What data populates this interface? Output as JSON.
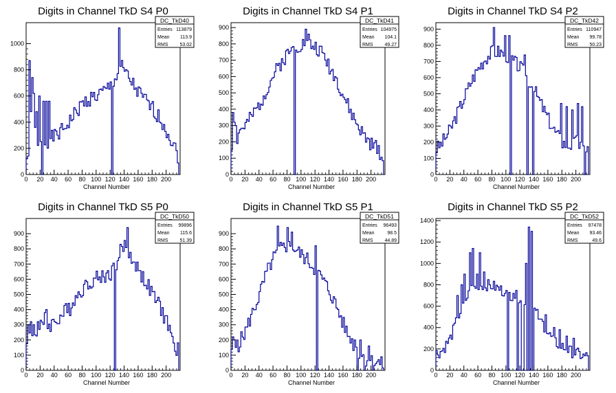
{
  "chart_data": [
    {
      "type": "histogram",
      "title": "Digits in Channel TkD S4 P0",
      "xlabel": "Channel Number",
      "xlim": [
        0,
        220
      ],
      "ylim": [
        0,
        1160
      ],
      "xticks": [
        0,
        20,
        40,
        60,
        80,
        100,
        120,
        140,
        160,
        180,
        200
      ],
      "yticks": [
        0,
        200,
        400,
        600,
        800,
        1000
      ],
      "stats": {
        "name": "DC_TkD40",
        "entries": "113879",
        "mean": "113.9",
        "rms": "53.02"
      },
      "anchors": [
        [
          0,
          120
        ],
        [
          2,
          160
        ],
        [
          4,
          140
        ],
        [
          6,
          160
        ],
        [
          8,
          190
        ],
        [
          10,
          200
        ],
        [
          14,
          210
        ],
        [
          18,
          230
        ],
        [
          22,
          230
        ],
        [
          26,
          250
        ],
        [
          30,
          260
        ],
        [
          40,
          290
        ],
        [
          50,
          330
        ],
        [
          60,
          400
        ],
        [
          70,
          470
        ],
        [
          80,
          540
        ],
        [
          90,
          580
        ],
        [
          100,
          600
        ],
        [
          110,
          630
        ],
        [
          115,
          650
        ],
        [
          120,
          680
        ],
        [
          125,
          720
        ],
        [
          130,
          760
        ],
        [
          135,
          820
        ],
        [
          140,
          780
        ],
        [
          150,
          700
        ],
        [
          160,
          620
        ],
        [
          170,
          560
        ],
        [
          180,
          500
        ],
        [
          190,
          430
        ],
        [
          200,
          340
        ],
        [
          205,
          280
        ],
        [
          210,
          220
        ],
        [
          215,
          160
        ],
        [
          218,
          120
        ]
      ],
      "spikes": [
        [
          4,
          870
        ],
        [
          6,
          480
        ],
        [
          8,
          740
        ],
        [
          10,
          620
        ],
        [
          12,
          360
        ],
        [
          14,
          480
        ],
        [
          18,
          600
        ],
        [
          24,
          560
        ],
        [
          28,
          560
        ],
        [
          32,
          560
        ],
        [
          132,
          1120
        ],
        [
          135,
          960
        ]
      ],
      "dips": [
        22,
        122
      ],
      "noise": 60,
      "seed": 1
    },
    {
      "type": "histogram",
      "title": "Digits in Channel TkD S4 P1",
      "xlabel": "Channel Number",
      "xlim": [
        0,
        220
      ],
      "ylim": [
        0,
        930
      ],
      "xticks": [
        0,
        20,
        40,
        60,
        80,
        100,
        120,
        140,
        160,
        180,
        200
      ],
      "yticks": [
        0,
        100,
        200,
        300,
        400,
        500,
        600,
        700,
        800,
        900
      ],
      "stats": {
        "name": "DC_TkD41",
        "entries": "104975",
        "mean": "104.1",
        "rms": "49.27"
      },
      "anchors": [
        [
          0,
          160
        ],
        [
          5,
          220
        ],
        [
          10,
          260
        ],
        [
          20,
          300
        ],
        [
          30,
          360
        ],
        [
          40,
          430
        ],
        [
          50,
          520
        ],
        [
          60,
          610
        ],
        [
          70,
          680
        ],
        [
          80,
          740
        ],
        [
          90,
          780
        ],
        [
          100,
          800
        ],
        [
          110,
          800
        ],
        [
          120,
          780
        ],
        [
          130,
          740
        ],
        [
          140,
          660
        ],
        [
          150,
          580
        ],
        [
          160,
          480
        ],
        [
          170,
          380
        ],
        [
          180,
          300
        ],
        [
          190,
          230
        ],
        [
          200,
          180
        ],
        [
          210,
          160
        ],
        [
          215,
          100
        ]
      ],
      "spikes": [
        [
          2,
          380
        ],
        [
          4,
          320
        ],
        [
          6,
          300
        ],
        [
          8,
          190
        ],
        [
          106,
          890
        ],
        [
          110,
          860
        ]
      ],
      "dips": [
        90
      ],
      "noise": 45,
      "seed": 2
    },
    {
      "type": "histogram",
      "title": "Digits in Channel TkD S4 P2",
      "xlabel": "Channel Number",
      "xlim": [
        0,
        220
      ],
      "ylim": [
        0,
        940
      ],
      "xticks": [
        0,
        20,
        40,
        60,
        80,
        100,
        120,
        140,
        160,
        180,
        200
      ],
      "yticks": [
        0,
        100,
        200,
        300,
        400,
        500,
        600,
        700,
        800,
        900
      ],
      "stats": {
        "name": "DC_TkD42",
        "entries": "110947",
        "mean": "99.78",
        "rms": "50.23"
      },
      "anchors": [
        [
          0,
          160
        ],
        [
          5,
          180
        ],
        [
          10,
          210
        ],
        [
          20,
          280
        ],
        [
          30,
          380
        ],
        [
          40,
          480
        ],
        [
          50,
          580
        ],
        [
          60,
          660
        ],
        [
          70,
          720
        ],
        [
          80,
          760
        ],
        [
          90,
          760
        ],
        [
          100,
          740
        ],
        [
          110,
          700
        ],
        [
          120,
          660
        ],
        [
          130,
          600
        ],
        [
          140,
          520
        ],
        [
          150,
          430
        ],
        [
          160,
          340
        ],
        [
          170,
          260
        ],
        [
          180,
          200
        ],
        [
          190,
          180
        ],
        [
          200,
          200
        ],
        [
          210,
          160
        ]
      ],
      "spikes": [
        [
          82,
          910
        ],
        [
          98,
          860
        ],
        [
          104,
          860
        ],
        [
          126,
          740
        ],
        [
          178,
          440
        ],
        [
          186,
          420
        ],
        [
          194,
          400
        ],
        [
          202,
          440
        ],
        [
          208,
          420
        ]
      ],
      "dips": [
        106,
        130,
        138,
        212
      ],
      "noise": 45,
      "seed": 3
    },
    {
      "type": "histogram",
      "title": "Digits in Channel TkD S5 P0",
      "xlabel": "Channel Number",
      "xlim": [
        0,
        220
      ],
      "ylim": [
        0,
        1000
      ],
      "xticks": [
        0,
        20,
        40,
        60,
        80,
        100,
        120,
        140,
        160,
        180,
        200
      ],
      "yticks": [
        0,
        100,
        200,
        300,
        400,
        500,
        600,
        700,
        800,
        900
      ],
      "stats": {
        "name": "DC_TkD50",
        "entries": "99896",
        "mean": "115.6",
        "rms": "51.39"
      },
      "anchors": [
        [
          0,
          220
        ],
        [
          5,
          240
        ],
        [
          10,
          250
        ],
        [
          20,
          270
        ],
        [
          30,
          290
        ],
        [
          40,
          320
        ],
        [
          50,
          360
        ],
        [
          60,
          420
        ],
        [
          70,
          480
        ],
        [
          80,
          540
        ],
        [
          90,
          580
        ],
        [
          100,
          610
        ],
        [
          110,
          620
        ],
        [
          120,
          640
        ],
        [
          125,
          680
        ],
        [
          130,
          720
        ],
        [
          135,
          800
        ],
        [
          140,
          820
        ],
        [
          150,
          740
        ],
        [
          160,
          660
        ],
        [
          170,
          580
        ],
        [
          180,
          500
        ],
        [
          190,
          420
        ],
        [
          200,
          320
        ],
        [
          205,
          260
        ],
        [
          210,
          160
        ],
        [
          215,
          130
        ],
        [
          218,
          150
        ]
      ],
      "spikes": [
        [
          2,
          300
        ],
        [
          6,
          320
        ],
        [
          10,
          300
        ],
        [
          16,
          320
        ],
        [
          20,
          330
        ],
        [
          26,
          380
        ],
        [
          28,
          400
        ],
        [
          40,
          320
        ],
        [
          58,
          380
        ],
        [
          62,
          360
        ],
        [
          144,
          940
        ]
      ],
      "dips": [
        126
      ],
      "noise": 50,
      "seed": 4
    },
    {
      "type": "histogram",
      "title": "Digits in Channel TkD S5 P1",
      "xlabel": "Channel Number",
      "xlim": [
        0,
        220
      ],
      "ylim": [
        0,
        1000
      ],
      "xticks": [
        0,
        20,
        40,
        60,
        80,
        100,
        120,
        140,
        160,
        180,
        200
      ],
      "yticks": [
        0,
        100,
        200,
        300,
        400,
        500,
        600,
        700,
        800,
        900
      ],
      "stats": {
        "name": "DC_TkD51",
        "entries": "96493",
        "mean": "98.5",
        "rms": "44.89"
      },
      "anchors": [
        [
          0,
          100
        ],
        [
          5,
          140
        ],
        [
          10,
          170
        ],
        [
          20,
          260
        ],
        [
          30,
          380
        ],
        [
          40,
          500
        ],
        [
          50,
          640
        ],
        [
          60,
          740
        ],
        [
          70,
          800
        ],
        [
          80,
          820
        ],
        [
          90,
          800
        ],
        [
          100,
          760
        ],
        [
          110,
          720
        ],
        [
          120,
          660
        ],
        [
          130,
          600
        ],
        [
          140,
          520
        ],
        [
          150,
          420
        ],
        [
          160,
          300
        ],
        [
          170,
          200
        ],
        [
          180,
          130
        ],
        [
          190,
          80
        ],
        [
          200,
          60
        ],
        [
          210,
          50
        ],
        [
          215,
          40
        ]
      ],
      "spikes": [
        [
          2,
          220
        ],
        [
          4,
          200
        ],
        [
          8,
          200
        ],
        [
          66,
          950
        ],
        [
          80,
          940
        ],
        [
          86,
          910
        ],
        [
          120,
          820
        ],
        [
          170,
          180
        ],
        [
          176,
          200
        ],
        [
          184,
          200
        ],
        [
          190,
          180
        ],
        [
          196,
          160
        ]
      ],
      "dips": [
        122,
        180,
        190,
        202
      ],
      "noise": 50,
      "seed": 5
    },
    {
      "type": "histogram",
      "title": "Digits in Channel TkD S5 P2",
      "xlabel": "Channel Number",
      "xlim": [
        0,
        220
      ],
      "ylim": [
        0,
        1420
      ],
      "xticks": [
        0,
        20,
        40,
        60,
        80,
        100,
        120,
        140,
        160,
        180,
        200
      ],
      "yticks": [
        0,
        200,
        400,
        600,
        800,
        1000,
        1200,
        1400
      ],
      "stats": {
        "name": "DC_TkD52",
        "entries": "97478",
        "mean": "93.46",
        "rms": "49.6"
      },
      "anchors": [
        [
          0,
          160
        ],
        [
          5,
          170
        ],
        [
          10,
          200
        ],
        [
          20,
          300
        ],
        [
          30,
          480
        ],
        [
          40,
          640
        ],
        [
          50,
          760
        ],
        [
          60,
          800
        ],
        [
          70,
          800
        ],
        [
          80,
          790
        ],
        [
          90,
          760
        ],
        [
          100,
          720
        ],
        [
          110,
          700
        ],
        [
          120,
          680
        ],
        [
          130,
          640
        ],
        [
          140,
          560
        ],
        [
          150,
          460
        ],
        [
          160,
          340
        ],
        [
          170,
          260
        ],
        [
          180,
          220
        ],
        [
          190,
          180
        ],
        [
          200,
          160
        ],
        [
          210,
          130
        ]
      ],
      "spikes": [
        [
          30,
          700
        ],
        [
          36,
          800
        ],
        [
          40,
          900
        ],
        [
          48,
          1100
        ],
        [
          52,
          1140
        ],
        [
          58,
          900
        ],
        [
          62,
          1100
        ],
        [
          68,
          920
        ],
        [
          76,
          800
        ],
        [
          98,
          720
        ],
        [
          110,
          720
        ],
        [
          116,
          800
        ],
        [
          128,
          1000
        ],
        [
          132,
          1340
        ],
        [
          136,
          1300
        ],
        [
          148,
          480
        ],
        [
          156,
          520
        ],
        [
          168,
          400
        ],
        [
          176,
          380
        ],
        [
          186,
          320
        ],
        [
          196,
          300
        ]
      ],
      "dips": [
        102,
        116,
        122,
        124,
        130,
        134,
        138
      ],
      "noise": 55,
      "seed": 6
    }
  ]
}
